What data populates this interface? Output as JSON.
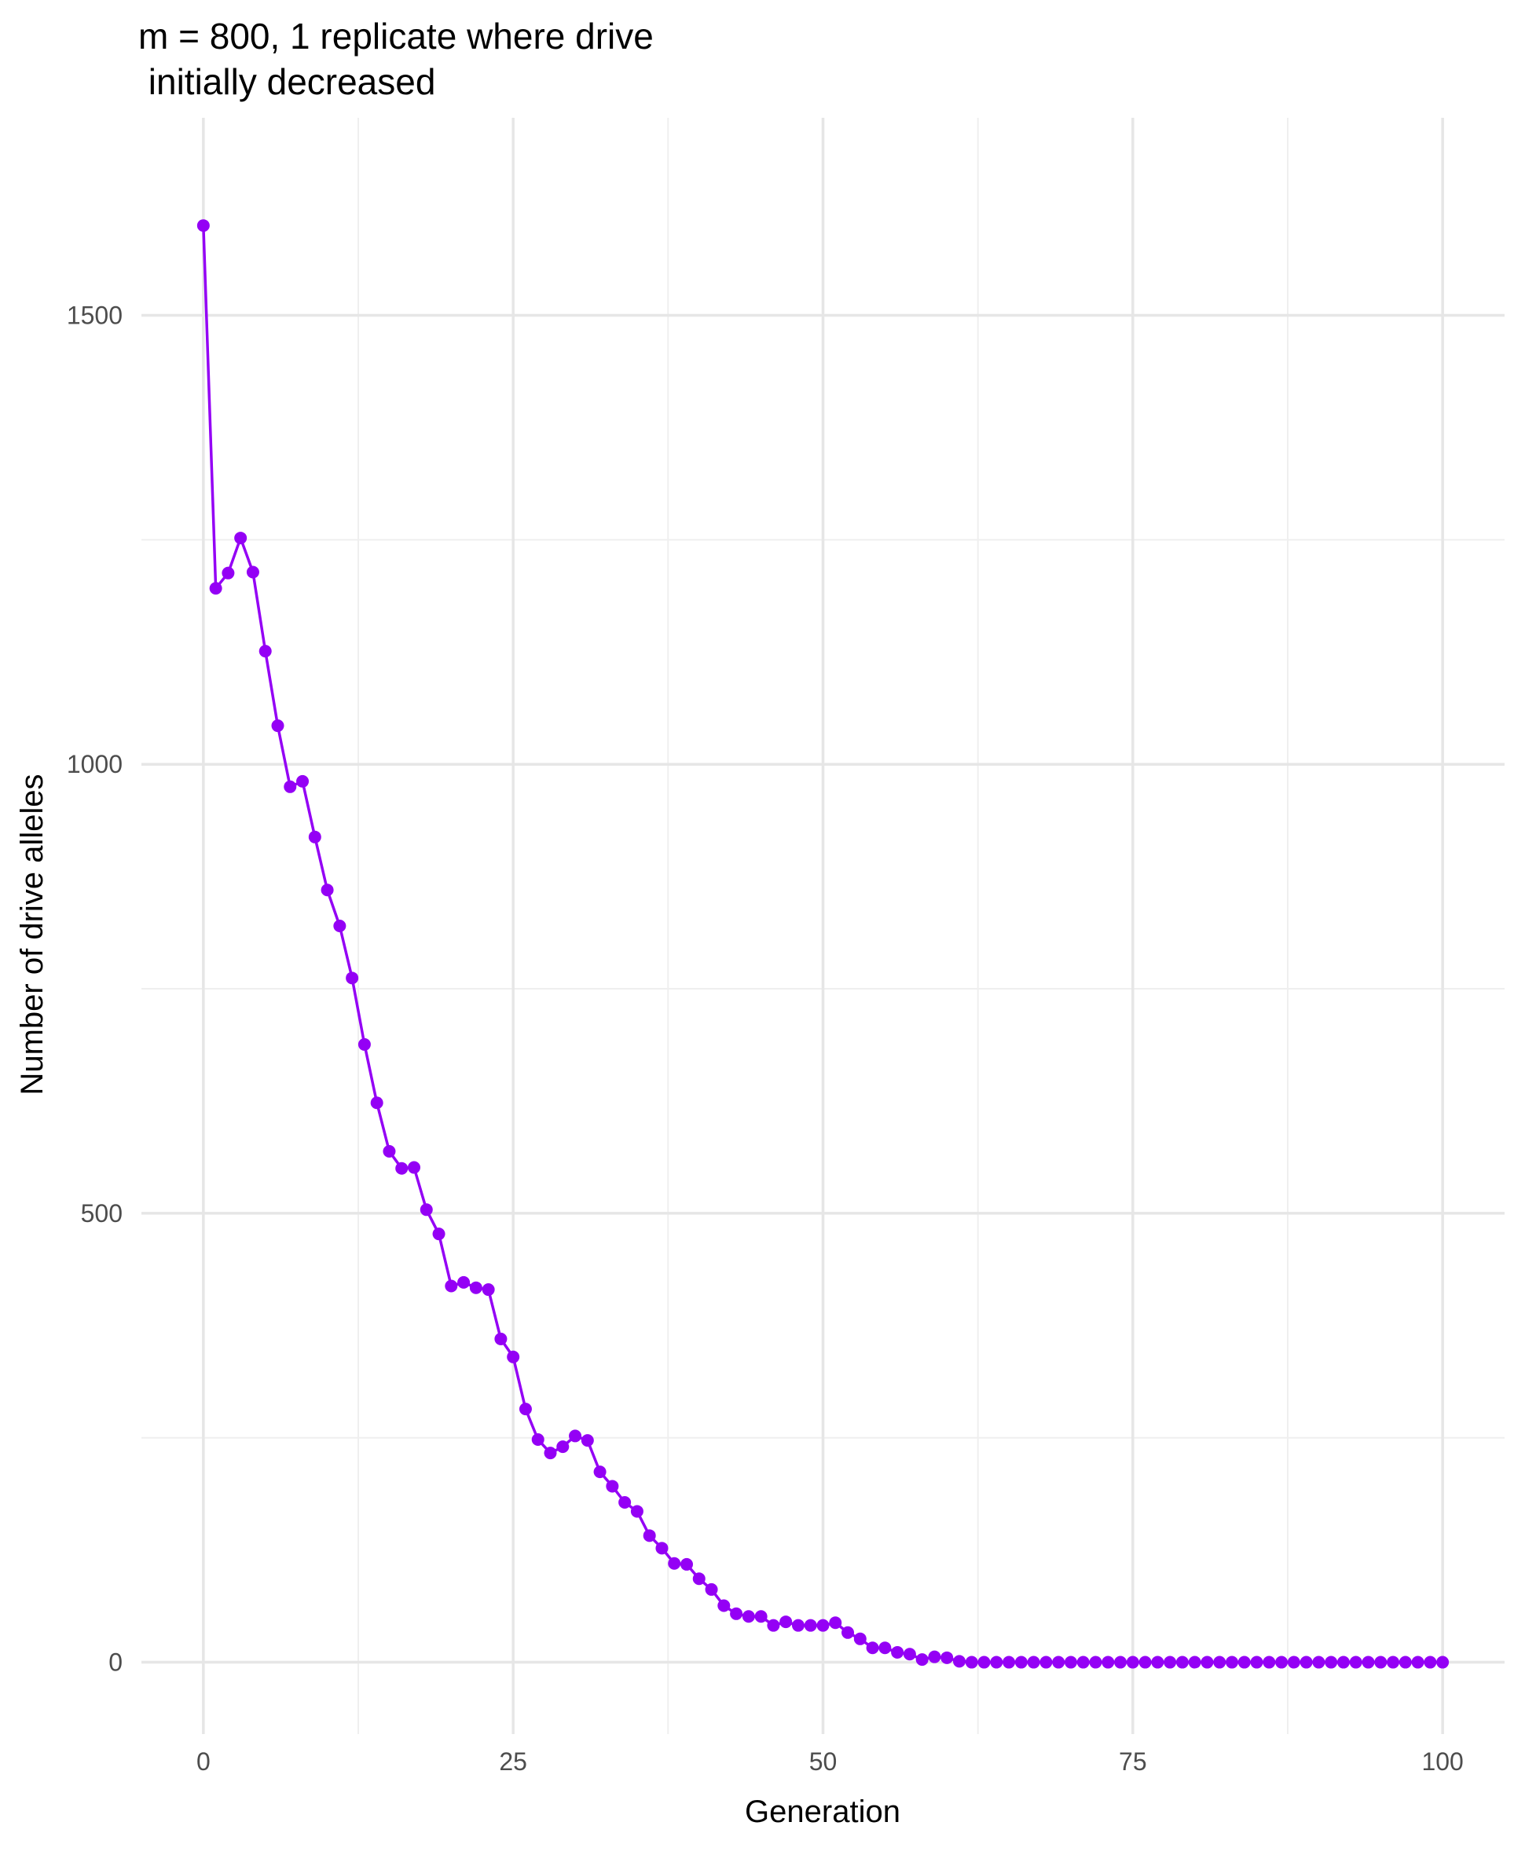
{
  "chart_data": {
    "type": "line",
    "title_line1": "m = 800, 1 replicate where drive",
    "title_line2": " initially decreased",
    "xlabel": "Generation",
    "ylabel": "Number of drive alleles",
    "xlim": [
      -5,
      105
    ],
    "ylim": [
      -80,
      1720
    ],
    "x_ticks": [
      0,
      25,
      50,
      75,
      100
    ],
    "x_tick_labels": [
      "0",
      "25",
      "50",
      "75",
      "100"
    ],
    "x_minor_ticks": [
      12.5,
      37.5,
      62.5,
      87.5
    ],
    "y_ticks": [
      0,
      500,
      1000,
      1500
    ],
    "y_tick_labels": [
      "0",
      "500",
      "1000",
      "1500"
    ],
    "y_minor_ticks": [
      250,
      750,
      1250
    ],
    "grid": true,
    "legend": "none",
    "series": [
      {
        "color": "#9400f5",
        "x": [
          0,
          1,
          2,
          3,
          4,
          5,
          6,
          7,
          8,
          9,
          10,
          11,
          12,
          13,
          14,
          15,
          16,
          17,
          18,
          19,
          20,
          21,
          22,
          23,
          24,
          25,
          26,
          27,
          28,
          29,
          30,
          31,
          32,
          33,
          34,
          35,
          36,
          37,
          38,
          39,
          40,
          41,
          42,
          43,
          44,
          45,
          46,
          47,
          48,
          49,
          50,
          51,
          52,
          53,
          54,
          55,
          56,
          57,
          58,
          59,
          60,
          61,
          62,
          63,
          64,
          65,
          66,
          67,
          68,
          69,
          70,
          71,
          72,
          73,
          74,
          75,
          76,
          77,
          78,
          79,
          80,
          81,
          82,
          83,
          84,
          85,
          86,
          87,
          88,
          89,
          90,
          91,
          92,
          93,
          94,
          95,
          96,
          97,
          98,
          99,
          100
        ],
        "values": [
          1600,
          1196,
          1213,
          1252,
          1214,
          1126,
          1043,
          975,
          981,
          919,
          860,
          820,
          762,
          688,
          623,
          569,
          550,
          551,
          504,
          477,
          419,
          423,
          417,
          415,
          360,
          340,
          282,
          248,
          233,
          240,
          252,
          247,
          212,
          196,
          178,
          168,
          141,
          127,
          110,
          109,
          93,
          81,
          63,
          54,
          51,
          51,
          41,
          45,
          41,
          41,
          41,
          44,
          33,
          26,
          16,
          16,
          11,
          9,
          3,
          6,
          5,
          1,
          0,
          0,
          0,
          0,
          0,
          0,
          0,
          0,
          0,
          0,
          0,
          0,
          0,
          0,
          0,
          0,
          0,
          0,
          0,
          0,
          0,
          0,
          0,
          0,
          0,
          0,
          0,
          0,
          0,
          0,
          0,
          0,
          0,
          0,
          0,
          0,
          0,
          0,
          0
        ]
      }
    ]
  }
}
